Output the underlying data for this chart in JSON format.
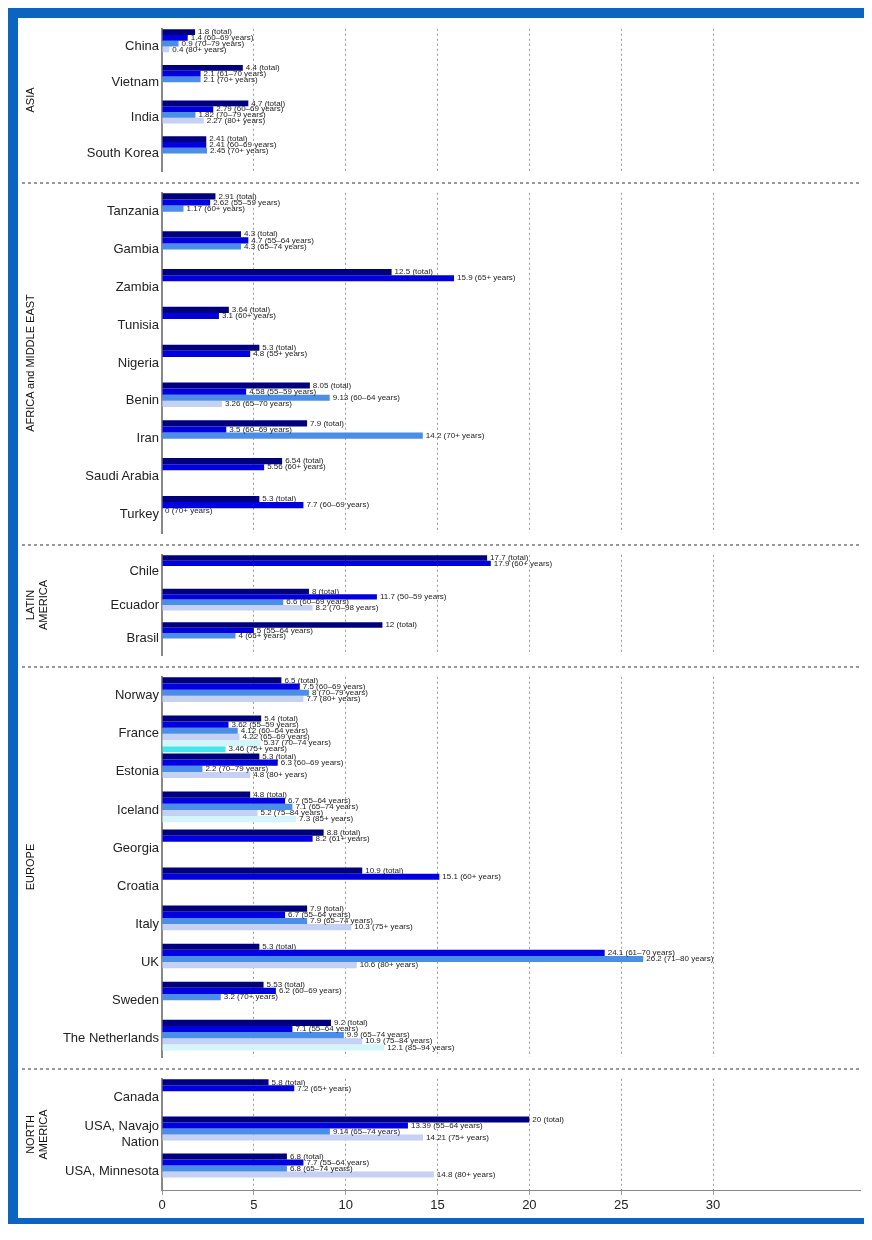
{
  "chart_data": [
    {
      "type": "bar",
      "orientation": "horizontal",
      "ylabel": "ASIA",
      "categories": [
        "China",
        "Vietnam",
        "India",
        "South Korea"
      ],
      "series": [
        {
          "color": "#00007e",
          "values": [
            1.8,
            4.4,
            4.7,
            2.41
          ],
          "value_labels": [
            "1.8 (total)",
            "4.4 (total)",
            "4.7 (total)",
            "2.41 (total)"
          ]
        },
        {
          "color": "#0000e0",
          "values": [
            1.4,
            2.1,
            2.79,
            2.41
          ],
          "value_labels": [
            "1.4 (60–69 years)",
            "2.1 (61–70 years)",
            "2.79 (60–69 years)",
            "2.41 (60–69 years)"
          ]
        },
        {
          "color": "#4a8ee8",
          "values": [
            0.9,
            2.1,
            1.82,
            2.45
          ],
          "value_labels": [
            "0.9 (70–79 years)",
            "2.1 (70+ years)",
            "1.82 (70–79 years)",
            "2.45 (70+ years)"
          ]
        },
        {
          "color": "#c4d0f4",
          "values": [
            0.4,
            null,
            2.27,
            null
          ],
          "value_labels": [
            "0.4 (80+ years)",
            null,
            "2.27 (80+ years)",
            null
          ]
        }
      ],
      "xlim": [
        0,
        38
      ],
      "xticks": [
        0,
        5,
        10,
        15,
        20,
        25,
        30
      ],
      "grid": "x",
      "tick_labels": "y"
    },
    {
      "type": "bar",
      "orientation": "horizontal",
      "ylabel": "AFRICA and MIDDLE EAST",
      "categories": [
        "Tanzania",
        "Gambia",
        "Zambia",
        "Tunisia",
        "Nigeria",
        "Benin",
        "Iran",
        "Saudi Arabia",
        "Turkey"
      ],
      "series": [
        {
          "color": "#00007e",
          "values": [
            2.91,
            4.3,
            12.5,
            3.64,
            5.3,
            8.05,
            7.9,
            6.54,
            5.3
          ],
          "value_labels": [
            "2.91 (total)",
            "4.3 (total)",
            "12.5 (total)",
            "3.64 (total)",
            "5.3 (total)",
            "8.05 (total)",
            "7.9 (total)",
            "6.54 (total)",
            "5.3 (total)"
          ]
        },
        {
          "color": "#0000e0",
          "values": [
            2.62,
            4.7,
            15.9,
            3.1,
            4.8,
            4.58,
            3.5,
            5.56,
            7.7
          ],
          "value_labels": [
            "2.62 (55–59 years)",
            "4.7 (55–64 years)",
            "15.9 (65+ years)",
            "3.1 (60+ years)",
            "4.8 (55+ years)",
            "4.58 (55–59 years)",
            "3.5 (60–69 years)",
            "5.56 (60+ years)",
            "7.7 (60–69 years)"
          ]
        },
        {
          "color": "#4a8ee8",
          "values": [
            1.17,
            4.3,
            null,
            null,
            null,
            9.13,
            14.2,
            null,
            0
          ],
          "value_labels": [
            "1.17 (60+ years)",
            "4.3 (65–74 years)",
            null,
            null,
            null,
            "9.13 (60–64 years)",
            "14.2 (70+ years)",
            null,
            "0 (70+ years)"
          ]
        },
        {
          "color": "#c4d0f4",
          "values": [
            null,
            null,
            null,
            null,
            null,
            3.26,
            null,
            null,
            null
          ],
          "value_labels": [
            null,
            null,
            null,
            null,
            null,
            "3.26 (65–70 years)",
            null,
            null,
            null
          ]
        }
      ],
      "xlim": [
        0,
        38
      ],
      "xticks": [
        0,
        5,
        10,
        15,
        20,
        25,
        30
      ],
      "grid": "x",
      "tick_labels": "y"
    },
    {
      "type": "bar",
      "orientation": "horizontal",
      "ylabel": "LATIN AMERICA",
      "categories": [
        "Chile",
        "Ecuador",
        "Brasil"
      ],
      "series": [
        {
          "color": "#00007e",
          "values": [
            17.7,
            8,
            12
          ],
          "value_labels": [
            "17.7 (total)",
            "8 (total)",
            "12 (total)"
          ]
        },
        {
          "color": "#0000e0",
          "values": [
            17.9,
            11.7,
            5
          ],
          "value_labels": [
            "17.9 (60+ years)",
            "11.7 (50–59 years)",
            "5 (55–64 years)"
          ]
        },
        {
          "color": "#4a8ee8",
          "values": [
            null,
            6.6,
            4
          ],
          "value_labels": [
            null,
            "6.6 (60–69 years)",
            "4 (65+ years)"
          ]
        },
        {
          "color": "#c4d0f4",
          "values": [
            null,
            8.2,
            null
          ],
          "value_labels": [
            null,
            "8.2 (70–98 years)",
            null
          ]
        }
      ],
      "xlim": [
        0,
        38
      ],
      "xticks": [
        0,
        5,
        10,
        15,
        20,
        25,
        30
      ],
      "grid": "x",
      "tick_labels": "y"
    },
    {
      "type": "bar",
      "orientation": "horizontal",
      "ylabel": "EUROPE",
      "categories": [
        "Norway",
        "France",
        "Estonia",
        "Iceland",
        "Georgia",
        "Croatia",
        "Italy",
        "UK",
        "Sweden",
        "The Netherlands"
      ],
      "series": [
        {
          "color": "#00007e",
          "values": [
            6.5,
            5.4,
            5.3,
            4.8,
            8.8,
            10.9,
            7.9,
            5.3,
            5.53,
            9.2
          ],
          "value_labels": [
            "6.5 (total)",
            "5.4 (total)",
            "5.3 (total)",
            "4.8 (total)",
            "8.8 (total)",
            "10.9 (total)",
            "7.9 (total)",
            "5.3 (total)",
            "5.53 (total)",
            "9.2 (total)"
          ]
        },
        {
          "color": "#0000e0",
          "values": [
            7.5,
            3.62,
            6.3,
            6.7,
            8.2,
            15.1,
            6.7,
            24.1,
            6.2,
            7.1
          ],
          "value_labels": [
            "7.5 (60–69 years)",
            "3.62 (55–59 years)",
            "6.3 (60–69 years)",
            "6.7 (55–64 years)",
            "8.2 (61+ years)",
            "15.1 (60+ years)",
            "6.7 (55–64 years)",
            "24.1 (61–70 years)",
            "6.2 (60–69 years)",
            "7.1 (55–64 years)"
          ]
        },
        {
          "color": "#4a8ee8",
          "values": [
            8,
            4.12,
            2.2,
            7.1,
            null,
            null,
            7.9,
            26.2,
            3.2,
            9.9
          ],
          "value_labels": [
            "8 (70–79 years)",
            "4.12 (60–64 years)",
            "2.2 (70–79 years)",
            "7.1 (65–74 years)",
            null,
            null,
            "7.9 (65–74 years)",
            "26.2 (71–80 years)",
            "3.2 (70+ years)",
            "9.9 (65–74 years)"
          ]
        },
        {
          "color": "#c4d0f4",
          "values": [
            7.7,
            4.22,
            4.8,
            5.2,
            null,
            null,
            10.3,
            10.6,
            null,
            10.9
          ],
          "value_labels": [
            "7.7 (80+ years)",
            "4.22 (65–69 years)",
            "4.8 (80+ years)",
            "5.2 (75–84 years)",
            null,
            null,
            "10.3 (75+ years)",
            "10.6 (80+ years)",
            null,
            "10.9 (75–84 years)"
          ]
        },
        {
          "color": "#d4f6fa",
          "values": [
            null,
            5.37,
            null,
            7.3,
            null,
            null,
            null,
            null,
            null,
            12.1
          ],
          "value_labels": [
            null,
            "5.37 (70–74 years)",
            null,
            "7.3 (85+ years)",
            null,
            null,
            null,
            null,
            null,
            "12.1 (85–94 years)"
          ]
        },
        {
          "color": "#44e6ec",
          "values": [
            null,
            3.46,
            null,
            null,
            null,
            null,
            null,
            null,
            null,
            null
          ],
          "value_labels": [
            null,
            "3.46 (75+ years)",
            null,
            null,
            null,
            null,
            null,
            null,
            null,
            null
          ]
        }
      ],
      "xlim": [
        0,
        38
      ],
      "xticks": [
        0,
        5,
        10,
        15,
        20,
        25,
        30
      ],
      "grid": "x",
      "tick_labels": "y"
    },
    {
      "type": "bar",
      "orientation": "horizontal",
      "ylabel": "NORTH AMERICA",
      "categories": [
        "Canada",
        "USA, Navajo Nation",
        "USA, Minnesota"
      ],
      "series": [
        {
          "color": "#00007e",
          "values": [
            5.8,
            20,
            6.8
          ],
          "value_labels": [
            "5.8 (total)",
            "20 (total)",
            "6.8 (total)"
          ]
        },
        {
          "color": "#0000e0",
          "values": [
            7.2,
            13.39,
            7.7
          ],
          "value_labels": [
            "7.2 (65+ years)",
            "13.39 (55–64 years)",
            "7.7 (55–64 years)"
          ]
        },
        {
          "color": "#4a8ee8",
          "values": [
            null,
            9.14,
            6.8
          ],
          "value_labels": [
            null,
            "9.14 (65–74 years)",
            "6.8 (65–74 years)"
          ]
        },
        {
          "color": "#c4d0f4",
          "values": [
            null,
            14.21,
            14.8
          ],
          "value_labels": [
            null,
            "14.21 (75+ years)",
            "14.8 (80+ years)"
          ]
        }
      ],
      "xlim": [
        0,
        38
      ],
      "xticks": [
        0,
        5,
        10,
        15,
        20,
        25,
        30
      ],
      "grid": "x"
    }
  ]
}
